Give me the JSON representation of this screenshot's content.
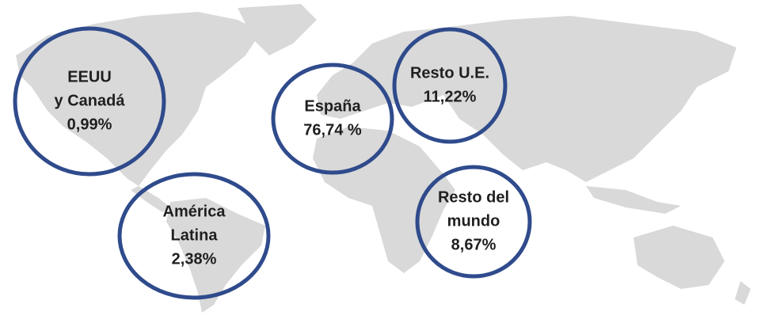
{
  "regions": [
    {
      "lines": [
        "EEUU",
        "y Canadá"
      ],
      "value": "0,99%"
    },
    {
      "lines": [
        "América",
        "Latina"
      ],
      "value": "2,38%"
    },
    {
      "lines": [
        "España"
      ],
      "value": "76,74 %"
    },
    {
      "lines": [
        "Resto U.E."
      ],
      "value": "11,22%"
    },
    {
      "lines": [
        "Resto del",
        "mundo"
      ],
      "value": "8,67%"
    }
  ]
}
